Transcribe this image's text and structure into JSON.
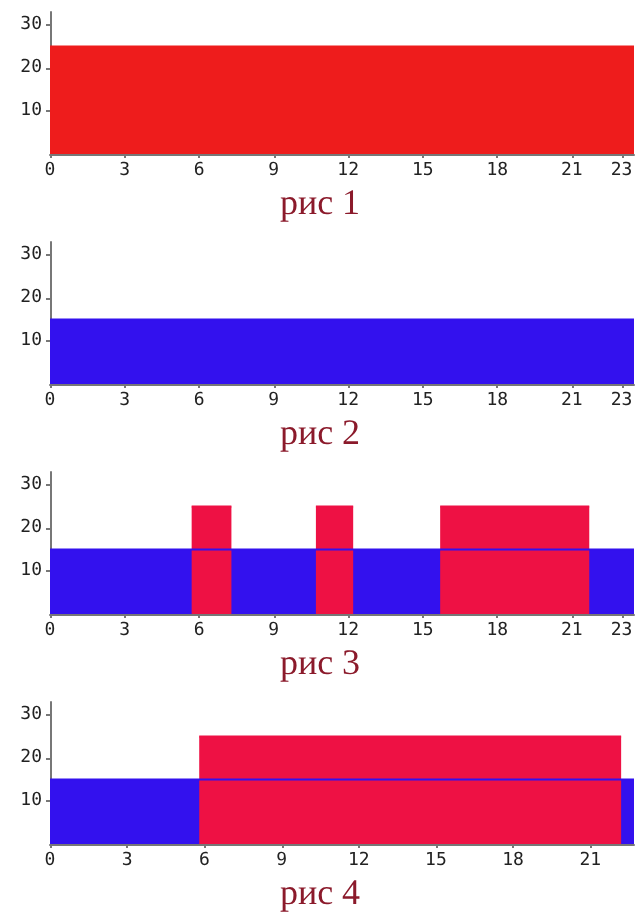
{
  "chart_data": [
    {
      "type": "area",
      "title": "рис 1",
      "xlim": [
        0,
        23.5
      ],
      "ylim": [
        0,
        33
      ],
      "xticks": [
        0,
        3,
        6,
        9,
        12,
        15,
        18,
        21,
        23
      ],
      "yticks": [
        10,
        20,
        30
      ],
      "grid": false,
      "series": [
        {
          "color": "#ee1c1c",
          "x": [
            0,
            23.5
          ],
          "values": [
            25,
            25
          ]
        }
      ]
    },
    {
      "type": "area",
      "title": "рис 2",
      "xlim": [
        0,
        23.5
      ],
      "ylim": [
        0,
        33
      ],
      "xticks": [
        0,
        3,
        6,
        9,
        12,
        15,
        18,
        21,
        23
      ],
      "yticks": [
        10,
        20,
        30
      ],
      "grid": false,
      "series": [
        {
          "color": "#3311ee",
          "x": [
            0,
            23.5
          ],
          "values": [
            15,
            15
          ]
        }
      ]
    },
    {
      "type": "area",
      "title": "рис 3",
      "xlim": [
        0,
        23.5
      ],
      "ylim": [
        0,
        33
      ],
      "xticks": [
        0,
        3,
        6,
        9,
        12,
        15,
        18,
        21,
        23
      ],
      "yticks": [
        10,
        20,
        30
      ],
      "grid": false,
      "series": [
        {
          "color": "#3311ee",
          "x": [
            0,
            23.5
          ],
          "values": [
            15,
            15
          ]
        },
        {
          "color": "#ee1144",
          "x": [
            5.7,
            7.3
          ],
          "values": [
            25,
            25
          ]
        },
        {
          "color": "#ee1144",
          "x": [
            10.7,
            12.2
          ],
          "values": [
            25,
            25
          ]
        },
        {
          "color": "#ee1144",
          "x": [
            15.7,
            21.7
          ],
          "values": [
            25,
            25
          ]
        }
      ]
    },
    {
      "type": "area",
      "title": "рис 4",
      "xlim": [
        0,
        22.7
      ],
      "ylim": [
        0,
        33
      ],
      "xticks": [
        0,
        3,
        6,
        9,
        12,
        15,
        18,
        21
      ],
      "yticks": [
        10,
        20,
        30
      ],
      "grid": false,
      "series": [
        {
          "color": "#3311ee",
          "x": [
            0,
            22.7
          ],
          "values": [
            15,
            15
          ]
        },
        {
          "color": "#ee1144",
          "x": [
            5.8,
            22.2
          ],
          "values": [
            25,
            25
          ]
        }
      ]
    }
  ]
}
